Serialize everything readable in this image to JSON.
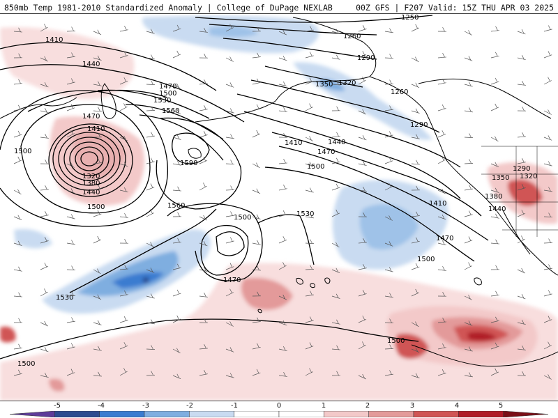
{
  "header": {
    "title_left": "850mb Temp 1981-2010 Standardized Anomaly | College of DuPage NEXLAB",
    "title_right": "00Z GFS | F207 Valid: 15Z THU APR 03 2025"
  },
  "map": {
    "contour_labels": [
      "1410",
      "1440",
      "1470",
      "1500",
      "1530",
      "1560",
      "1590",
      "1410",
      "1380",
      "1320",
      "1440",
      "1500",
      "1470",
      "1560",
      "1500",
      "1470",
      "1530",
      "1500",
      "1530",
      "1250",
      "1260",
      "1290",
      "1350",
      "1320",
      "1260",
      "1290",
      "1410",
      "1440",
      "1470",
      "1500",
      "1410",
      "1470",
      "1500",
      "1290",
      "1320",
      "1350",
      "1380",
      "1440",
      "1500",
      "1500"
    ],
    "colors": {
      "neg5": "#5e3c99",
      "neg4": "#2c4b8f",
      "neg3": "#3a7cd0",
      "neg2": "#7faee0",
      "neg1": "#c9dbf1",
      "zero": "#ffffff",
      "pos1": "#f3c9c9",
      "pos2": "#e39a9a",
      "pos3": "#d05555",
      "pos4": "#b01c28",
      "pos5": "#7a0f17",
      "pos6": "#f0c419",
      "contour": "#000000",
      "coast": "#000000"
    }
  },
  "colorbar": {
    "ticks": [
      "-5",
      "-4",
      "-3",
      "-2",
      "-1",
      "0",
      "1",
      "2",
      "3",
      "4",
      "5"
    ],
    "bins": [
      "neg5",
      "neg4",
      "neg3",
      "neg2",
      "neg1",
      "zero",
      "zero",
      "pos1",
      "pos2",
      "pos3",
      "pos4",
      "pos5"
    ]
  }
}
